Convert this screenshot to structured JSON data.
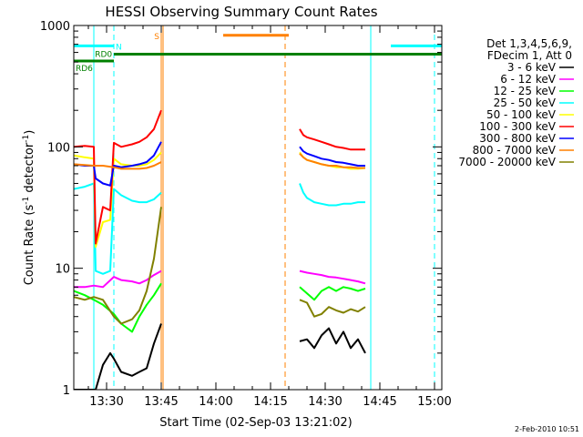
{
  "chart_data": {
    "type": "line",
    "title": "HESSI Observing Summary Count Rates",
    "xlabel": "Start Time (02-Sep-03 13:21:02)",
    "ylabel_main": "Count Rate (s",
    "ylabel_sup1": "-1",
    "ylabel_mid": " detector",
    "ylabel_sup2": "-1",
    "ylabel_end": ")",
    "yscale": "log",
    "ylim": [
      1,
      1000
    ],
    "xlim_minutes": [
      0,
      101
    ],
    "x_unit": "minutes after 13:21:02",
    "x_ticks": [
      {
        "label": "13:30",
        "m": 9
      },
      {
        "label": "13:45",
        "m": 24
      },
      {
        "label": "14:00",
        "m": 39
      },
      {
        "label": "14:15",
        "m": 54
      },
      {
        "label": "14:30",
        "m": 69
      },
      {
        "label": "14:45",
        "m": 84
      },
      {
        "label": "15:00",
        "m": 99
      }
    ],
    "y_ticks": [
      {
        "label": "1",
        "v": 1
      },
      {
        "label": "10",
        "v": 10
      },
      {
        "label": "100",
        "v": 100
      },
      {
        "label": "1000",
        "v": 1000
      }
    ],
    "legend_header": [
      "Det 1,3,4,5,6,9,",
      "FDecim 1, Att 0"
    ],
    "legend_position": "right",
    "flags": [
      {
        "label": "N",
        "color": "#00ffff",
        "value": 680,
        "segments": [
          [
            0,
            11
          ],
          [
            87,
            101
          ]
        ]
      },
      {
        "label": "S",
        "color": "#ff8000",
        "value": 830,
        "segments": [
          [
            41,
            59
          ]
        ]
      },
      {
        "label": "RD0",
        "color": "#008000",
        "value": 580,
        "segments": [
          [
            11,
            101
          ]
        ]
      },
      {
        "label": "RD6",
        "color": "#008000",
        "value": 510,
        "segments": [
          [
            0,
            11
          ]
        ]
      }
    ],
    "vlines": [
      {
        "m": 5.5,
        "color": "#00ffff",
        "style": "solid"
      },
      {
        "m": 11,
        "color": "#00ffff",
        "style": "dashed"
      },
      {
        "m": 24,
        "color": "#ff8000",
        "style": "solid"
      },
      {
        "m": 24.5,
        "color": "#ff8000",
        "style": "solid"
      },
      {
        "m": 58,
        "color": "#ff8000",
        "style": "dashed"
      },
      {
        "m": 81.5,
        "color": "#00ffff",
        "style": "solid"
      },
      {
        "m": 99,
        "color": "#00ffff",
        "style": "dashed"
      }
    ],
    "series": [
      {
        "name": "3 - 6 keV",
        "color": "#000000",
        "segments": [
          {
            "x": [
              0,
              3,
              6,
              8,
              10,
              11,
              13,
              16,
              18,
              20,
              22,
              24
            ],
            "y": [
              1.0,
              1.0,
              1.0,
              1.6,
              2.0,
              1.8,
              1.4,
              1.3,
              1.4,
              1.5,
              2.4,
              3.5
            ]
          },
          {
            "x": [
              62,
              64,
              66,
              68,
              70,
              72,
              74,
              76,
              78,
              80
            ],
            "y": [
              2.5,
              2.6,
              2.2,
              2.8,
              3.2,
              2.4,
              3.0,
              2.2,
              2.6,
              2.0
            ]
          }
        ]
      },
      {
        "name": "6 - 12 keV",
        "color": "#ff00ff",
        "segments": [
          {
            "x": [
              0,
              3,
              5.5,
              8,
              11,
              13,
              16,
              18,
              20,
              22,
              24
            ],
            "y": [
              7.0,
              7.0,
              7.2,
              7.0,
              8.5,
              8.0,
              7.8,
              7.5,
              8.0,
              8.8,
              9.5
            ]
          },
          {
            "x": [
              62,
              64,
              66,
              68,
              70,
              72,
              74,
              76,
              78,
              80
            ],
            "y": [
              9.5,
              9.2,
              9.0,
              8.8,
              8.5,
              8.4,
              8.2,
              8.0,
              7.8,
              7.5
            ]
          }
        ]
      },
      {
        "name": "12 - 25 keV",
        "color": "#00ff00",
        "segments": [
          {
            "x": [
              0,
              3,
              5.5,
              8,
              11,
              13,
              16,
              18,
              20,
              22,
              24
            ],
            "y": [
              6.5,
              6.0,
              5.5,
              5.0,
              4.2,
              3.5,
              3.0,
              4.0,
              5.0,
              6.0,
              7.5
            ]
          },
          {
            "x": [
              62,
              64,
              66,
              68,
              70,
              72,
              74,
              76,
              78,
              80
            ],
            "y": [
              7.0,
              6.2,
              5.5,
              6.5,
              7.0,
              6.5,
              7.0,
              6.8,
              6.5,
              6.8
            ]
          }
        ]
      },
      {
        "name": "25 - 50 keV",
        "color": "#00ffff",
        "segments": [
          {
            "x": [
              0,
              3,
              5.5,
              6,
              8,
              10,
              11,
              13,
              16,
              18,
              20,
              22,
              24
            ],
            "y": [
              45,
              47,
              50,
              9.5,
              9.0,
              9.5,
              45,
              40,
              36,
              35,
              35,
              37,
              42
            ]
          },
          {
            "x": [
              62,
              63,
              64,
              66,
              68,
              70,
              72,
              74,
              76,
              78,
              80
            ],
            "y": [
              50,
              42,
              38,
              35,
              34,
              33,
              33,
              34,
              34,
              35,
              35
            ]
          }
        ]
      },
      {
        "name": "50 - 100 keV",
        "color": "#ffff00",
        "segments": [
          {
            "x": [
              0,
              3,
              5.5,
              6,
              8,
              10,
              11,
              13,
              16,
              18,
              20,
              22,
              24
            ],
            "y": [
              85,
              82,
              80,
              15,
              24,
              25,
              80,
              72,
              70,
              70,
              72,
              78,
              90
            ]
          },
          {
            "x": [
              62,
              63,
              64,
              66,
              68,
              70,
              72,
              74,
              76,
              78,
              80
            ],
            "y": [
              90,
              82,
              78,
              75,
              72,
              70,
              68,
              68,
              66,
              66,
              67
            ]
          }
        ]
      },
      {
        "name": "100 - 300 keV",
        "color": "#ff0000",
        "segments": [
          {
            "x": [
              0,
              3,
              5.5,
              6,
              8,
              10,
              11,
              13,
              16,
              18,
              20,
              22,
              24
            ],
            "y": [
              100,
              102,
              100,
              16,
              32,
              30,
              108,
              100,
              105,
              110,
              120,
              140,
              200
            ]
          },
          {
            "x": [
              62,
              63,
              64,
              66,
              68,
              70,
              72,
              74,
              76,
              78,
              80
            ],
            "y": [
              140,
              125,
              120,
              115,
              110,
              105,
              100,
              98,
              95,
              95,
              95
            ]
          }
        ]
      },
      {
        "name": "300 - 800 keV",
        "color": "#0000ff",
        "segments": [
          {
            "x": [
              0,
              3,
              5.5,
              6,
              8,
              10,
              11,
              13,
              16,
              18,
              20,
              22,
              24
            ],
            "y": [
              72,
              70,
              70,
              55,
              50,
              48,
              70,
              68,
              70,
              72,
              75,
              85,
              110
            ]
          },
          {
            "x": [
              62,
              63,
              64,
              66,
              68,
              70,
              72,
              74,
              76,
              78,
              80
            ],
            "y": [
              100,
              92,
              88,
              84,
              80,
              78,
              75,
              74,
              72,
              70,
              70
            ]
          }
        ]
      },
      {
        "name": "800 - 7000 keV",
        "color": "#ff8000",
        "segments": [
          {
            "x": [
              0,
              3,
              5.5,
              8,
              11,
              13,
              16,
              18,
              20,
              22,
              24
            ],
            "y": [
              72,
              71,
              70,
              70,
              68,
              66,
              66,
              66,
              67,
              70,
              75
            ]
          },
          {
            "x": [
              62,
              63,
              64,
              66,
              68,
              70,
              72,
              74,
              76,
              78,
              80
            ],
            "y": [
              88,
              82,
              78,
              75,
              72,
              70,
              70,
              68,
              68,
              67,
              67
            ]
          }
        ]
      },
      {
        "name": "7000 - 20000 keV",
        "color": "#808000",
        "segments": [
          {
            "x": [
              0,
              3,
              5.5,
              8,
              11,
              13,
              16,
              18,
              20,
              22,
              24
            ],
            "y": [
              5.8,
              5.5,
              5.8,
              5.5,
              4.0,
              3.5,
              3.8,
              4.5,
              6.5,
              12,
              32
            ]
          },
          {
            "x": [
              62,
              64,
              66,
              68,
              70,
              72,
              74,
              76,
              78,
              80
            ],
            "y": [
              5.5,
              5.2,
              4.0,
              4.2,
              4.8,
              4.5,
              4.3,
              4.6,
              4.4,
              4.8
            ]
          }
        ]
      }
    ]
  },
  "footer": {
    "timestamp": "2-Feb-2010 10:51"
  }
}
